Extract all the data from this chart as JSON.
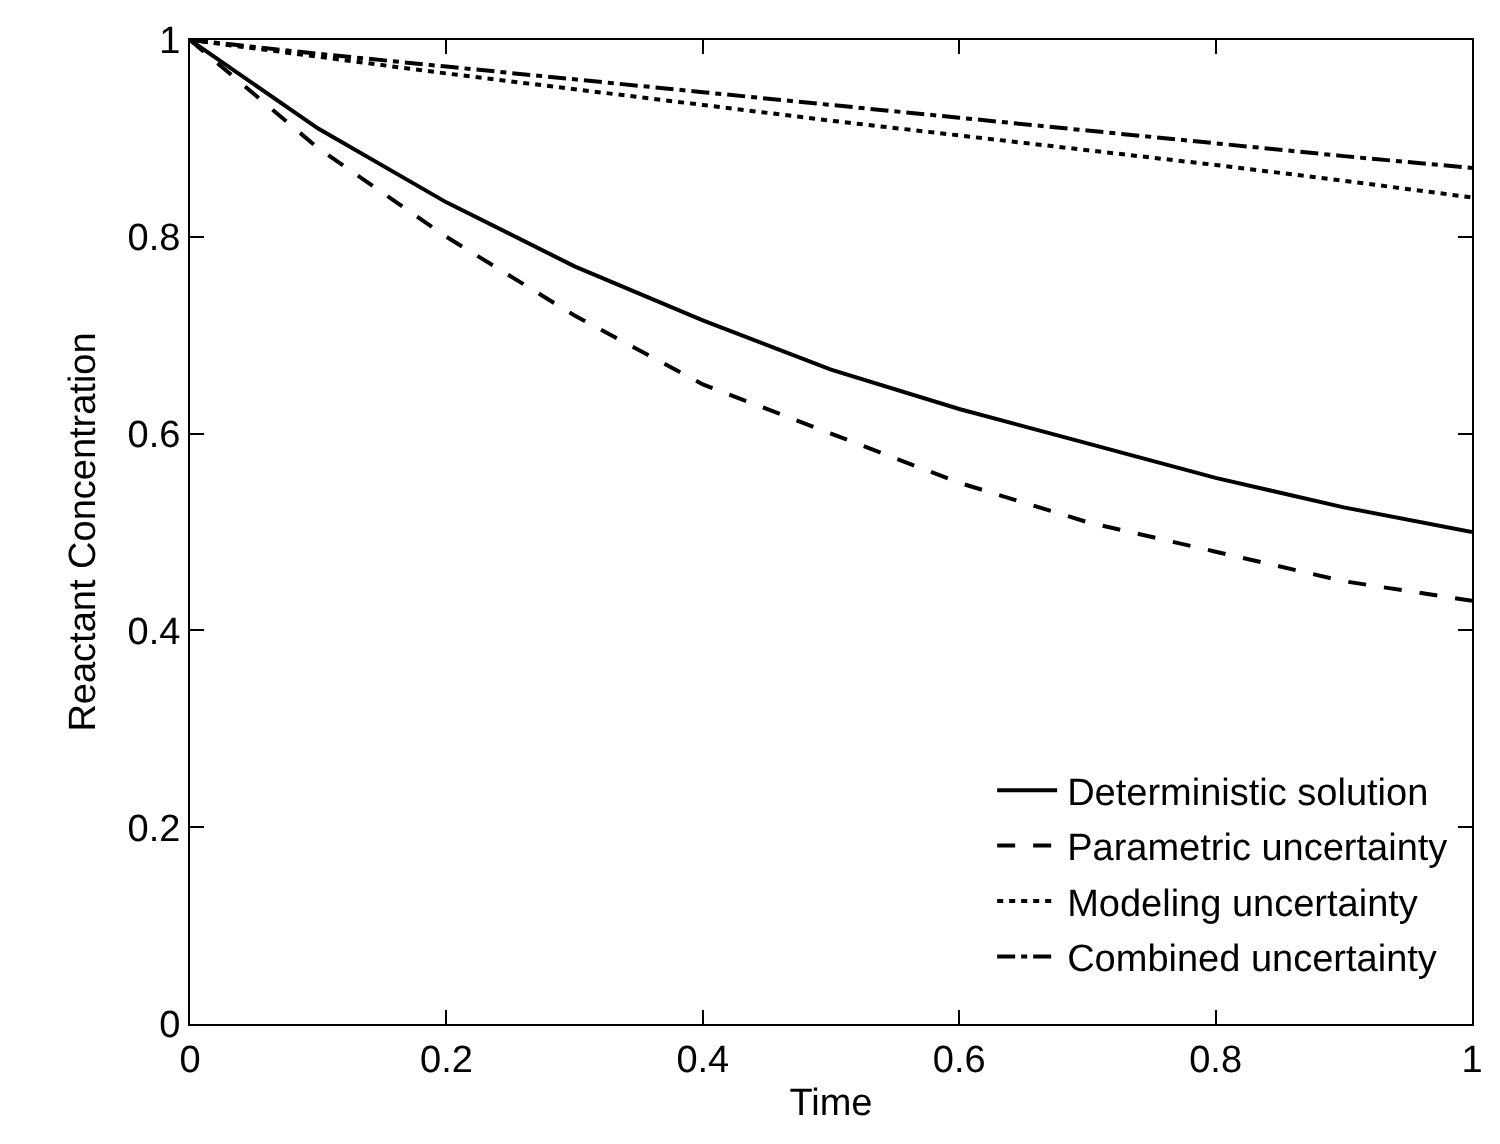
{
  "chart_data": {
    "type": "line",
    "xlabel": "Time",
    "ylabel": "Reactant Concentration",
    "x": [
      0,
      0.1,
      0.2,
      0.3,
      0.4,
      0.5,
      0.6,
      0.7,
      0.8,
      0.9,
      1
    ],
    "xlim": [
      0,
      1
    ],
    "xticks": [
      0,
      0.2,
      0.4,
      0.6,
      0.8,
      1
    ],
    "ylim": [
      0,
      1
    ],
    "yticks": [
      0,
      0.2,
      0.4,
      0.6,
      0.8,
      1
    ],
    "grid": false,
    "legend": "bottom right",
    "marker": "none",
    "series": [
      {
        "name": "Deterministic solution",
        "color": "#000000",
        "line_style": "solid",
        "values": [
          1,
          0.91,
          0.835,
          0.77,
          0.715,
          0.665,
          0.625,
          0.59,
          0.555,
          0.525,
          0.5
        ]
      },
      {
        "name": "Parametric uncertainty",
        "color": "#000000",
        "line_style": "dashed",
        "values": [
          1,
          0.89,
          0.8,
          0.72,
          0.65,
          0.6,
          0.55,
          0.51,
          0.48,
          0.45,
          0.43
        ]
      },
      {
        "name": "Modeling uncertainty",
        "color": "#000000",
        "line_style": "dotted",
        "values": [
          1,
          0.983,
          0.966,
          0.95,
          0.934,
          0.918,
          0.903,
          0.888,
          0.873,
          0.857,
          0.84
        ]
      },
      {
        "name": "Combined uncertainty",
        "color": "#000000",
        "line_style": "dashdot",
        "values": [
          1,
          0.986,
          0.973,
          0.96,
          0.947,
          0.934,
          0.921,
          0.908,
          0.895,
          0.882,
          0.87
        ]
      }
    ]
  }
}
